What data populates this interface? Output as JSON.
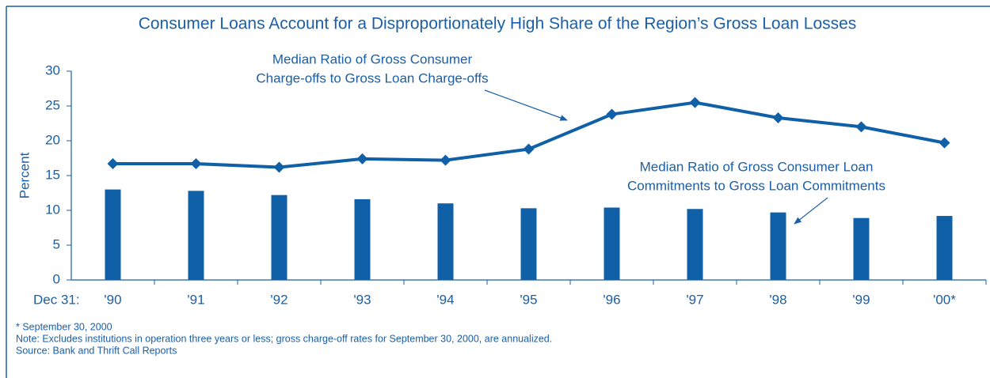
{
  "chart_data": {
    "type": "bar",
    "title": "Consumer Loans Account for a Disproportionately High Share of the Region’s Gross Loan Losses",
    "ylabel": "Percent",
    "x_label": "Dec 31:",
    "categories": [
      "'90",
      "'91",
      "'92",
      "'93",
      "'94",
      "'95",
      "'96",
      "'97",
      "'98",
      "'99",
      "'00*"
    ],
    "series": [
      {
        "type": "bar",
        "color": "#1060a8",
        "values": [
          13.0,
          12.8,
          12.2,
          11.6,
          11.0,
          10.3,
          10.4,
          10.2,
          9.7,
          8.9,
          9.2
        ]
      },
      {
        "type": "line",
        "color": "#1060a8",
        "values": [
          16.7,
          16.7,
          16.2,
          17.4,
          17.2,
          18.8,
          23.8,
          25.5,
          23.3,
          22.0,
          19.7
        ]
      }
    ],
    "ylim": [
      0,
      30
    ],
    "yticks": [
      0,
      5,
      10,
      15,
      20,
      25,
      30
    ],
    "annotations": [
      {
        "lines": [
          "Median Ratio of Gross Consumer",
          "Charge-offs to Gross Loan Charge-offs"
        ]
      },
      {
        "lines": [
          "Median Ratio of Gross Consumer Loan",
          "Commitments to Gross Loan Commitments"
        ]
      }
    ],
    "notes": [
      "* September 30, 2000",
      "Note:  Excludes institutions in operation three years or less; gross charge-off rates for September 30, 2000, are annualized.",
      "Source: Bank and Thrift Call Reports"
    ]
  }
}
